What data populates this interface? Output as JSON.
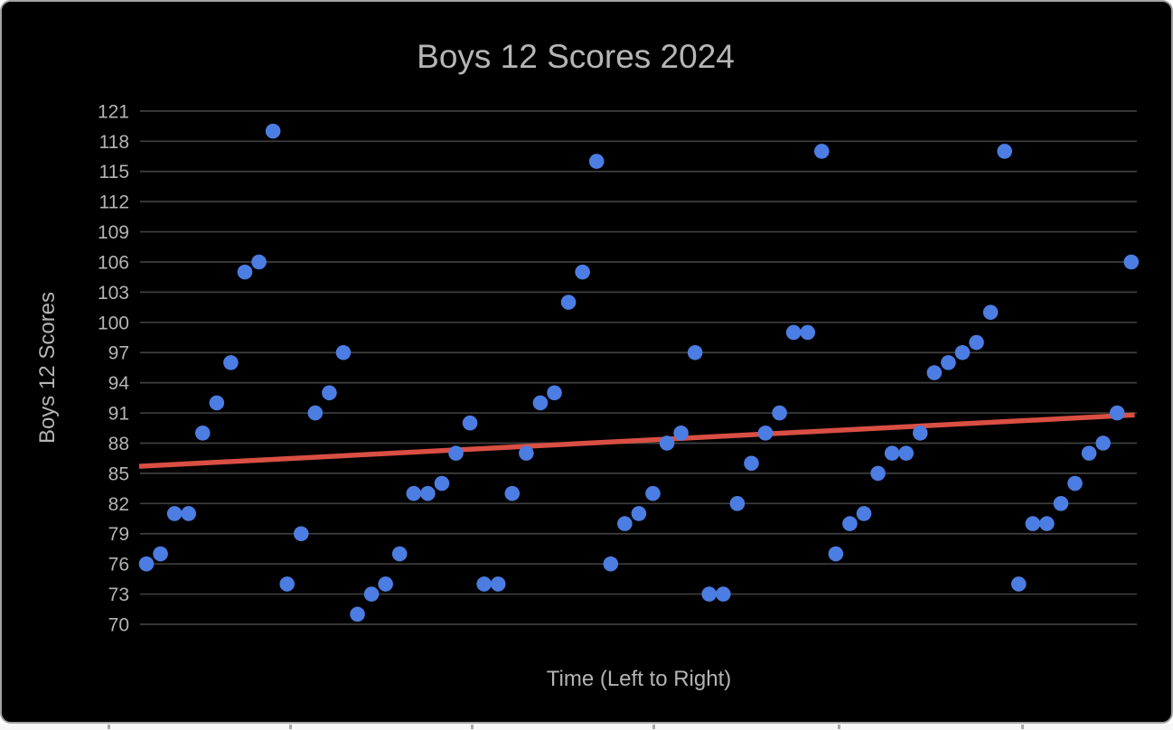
{
  "frame": {
    "background": "#000000",
    "border_color": "#a3a3a3",
    "page_background": "#ffffff"
  },
  "chart_data": {
    "type": "scatter",
    "title": "Boys 12 Scores 2024",
    "xlabel": "Time (Left to Right)",
    "ylabel": "Boys 12 Scores",
    "ylim": [
      70,
      121
    ],
    "y_ticks": [
      70,
      73,
      76,
      79,
      82,
      85,
      88,
      91,
      94,
      97,
      100,
      103,
      106,
      109,
      112,
      115,
      118,
      121
    ],
    "grid": true,
    "legend_position": "none",
    "series": [
      {
        "name": "Boys 12 Scores",
        "color": "#4c7de2",
        "point_radius_px": 8.3,
        "values": [
          76,
          77,
          81,
          81,
          89,
          92,
          96,
          105,
          106,
          119,
          74,
          79,
          91,
          93,
          97,
          71,
          73,
          74,
          77,
          83,
          83,
          84,
          87,
          90,
          74,
          74,
          83,
          87,
          92,
          93,
          102,
          105,
          116,
          76,
          80,
          81,
          83,
          88,
          89,
          97,
          73,
          73,
          82,
          86,
          89,
          91,
          99,
          99,
          117,
          77,
          80,
          81,
          85,
          87,
          87,
          89,
          95,
          96,
          97,
          98,
          101,
          117,
          74,
          80,
          80,
          82,
          84,
          87,
          88,
          91,
          106
        ]
      }
    ],
    "trendline": {
      "color": "#da4f43",
      "start_value": 85.7,
      "end_value": 90.8
    },
    "colors": {
      "gridline": "#3f3f3f",
      "tick_text": "#b4b4b4",
      "title_text": "#b6b6b6"
    }
  }
}
